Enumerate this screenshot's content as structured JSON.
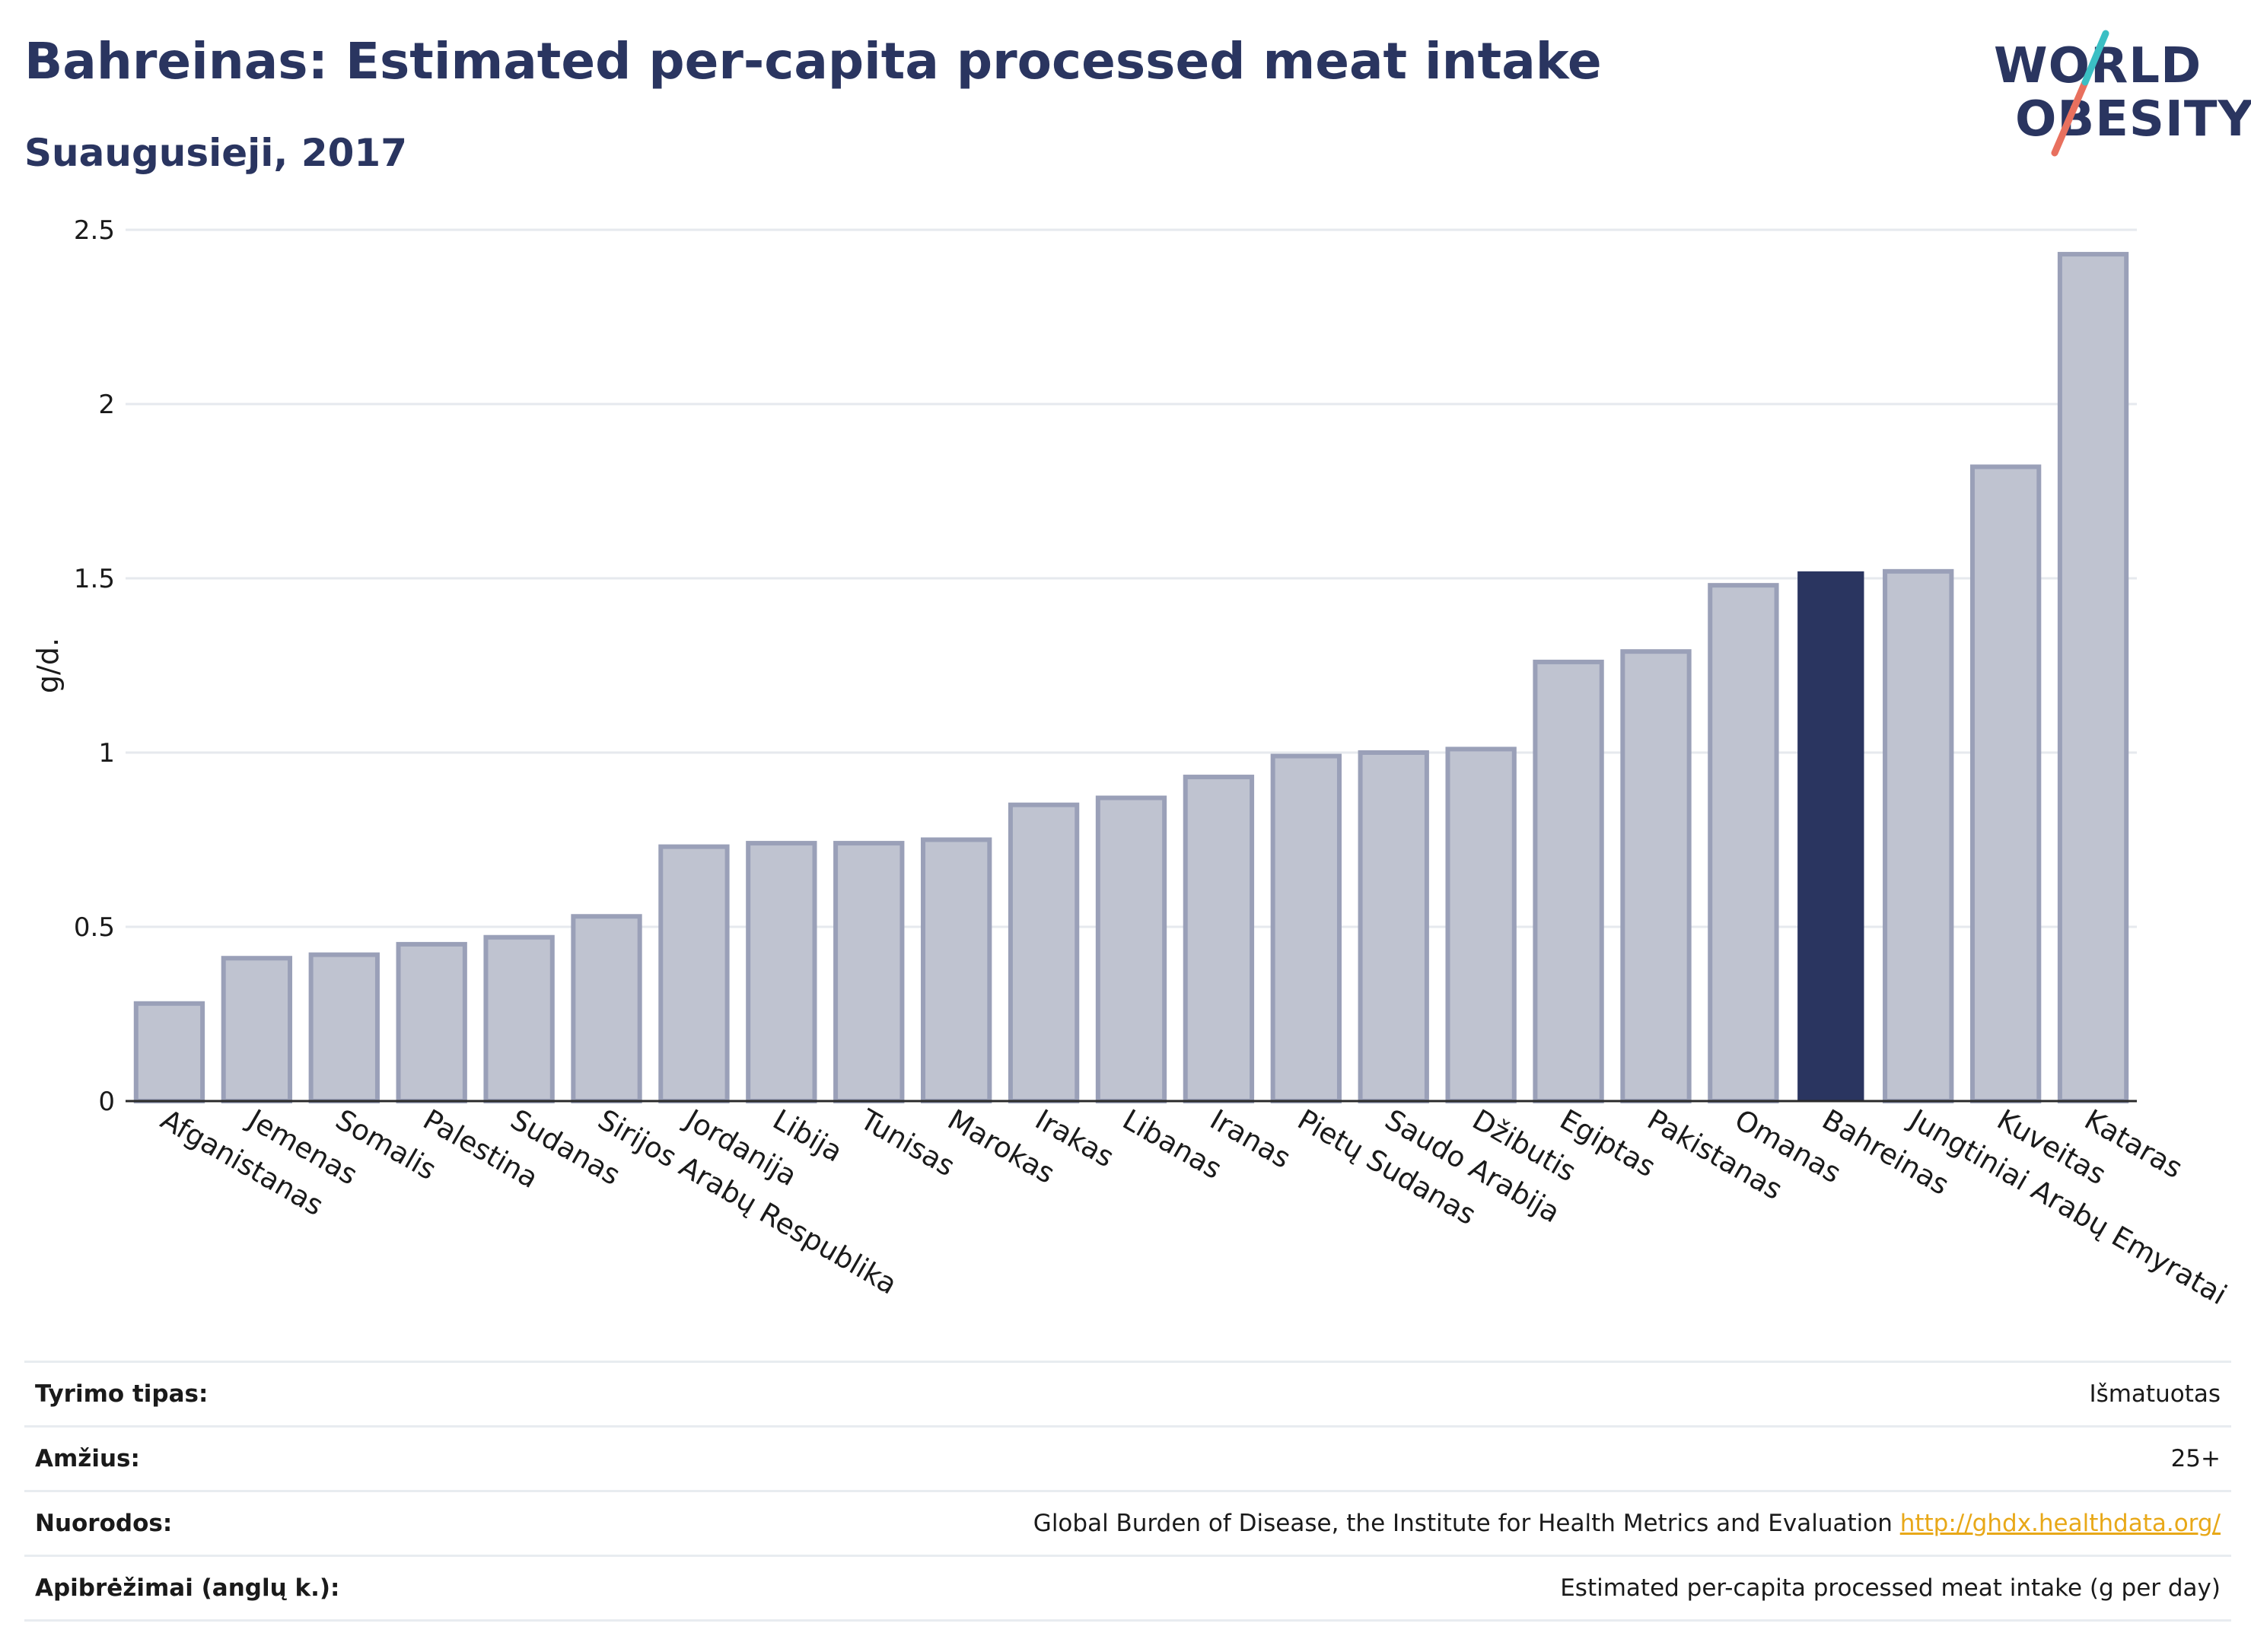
{
  "header": {
    "title": "Bahreinas: Estimated per-capita processed meat intake",
    "subtitle": "Suaugusieji, 2017"
  },
  "logo": {
    "line1": "WORLD",
    "line2": "OBESITY",
    "accent_teal": "#3bbfc4",
    "accent_coral": "#e8705e"
  },
  "colors": {
    "bar_default_fill": "#bfc3d0",
    "bar_default_stroke": "#9aa0b8",
    "bar_highlight": "#2a3560",
    "grid": "#e6e9ee",
    "axis": "#2a2a2a",
    "text": "#2a3560"
  },
  "chart_data": {
    "type": "bar",
    "title": "Bahreinas: Estimated per-capita processed meat intake",
    "subtitle": "Suaugusieji, 2017",
    "xlabel": "",
    "ylabel": "g/d.",
    "ylim": [
      0,
      2.5
    ],
    "yticks": [
      "0",
      "0.5",
      "1",
      "1.5",
      "2",
      "2.5"
    ],
    "grid": true,
    "highlight": "Bahreinas",
    "categories": [
      "Afganistanas",
      "Jemenas",
      "Somalis",
      "Palestina",
      "Sudanas",
      "Sirijos Arabų Respublika",
      "Jordanija",
      "Libija",
      "Tunisas",
      "Marokas",
      "Irakas",
      "Libanas",
      "Iranas",
      "Pietų Sudanas",
      "Saudo Arabija",
      "Džibutis",
      "Egiptas",
      "Pakistanas",
      "Omanas",
      "Bahreinas",
      "Jungtiniai Arabų Emyratai",
      "Kuveitas",
      "Kataras"
    ],
    "values": [
      0.28,
      0.41,
      0.42,
      0.45,
      0.47,
      0.53,
      0.73,
      0.74,
      0.74,
      0.75,
      0.85,
      0.87,
      0.93,
      0.99,
      1.0,
      1.01,
      1.26,
      1.29,
      1.48,
      1.52,
      1.52,
      1.82,
      2.43
    ]
  },
  "info": [
    {
      "label": "Tyrimo tipas:",
      "value": "Išmatuotas"
    },
    {
      "label": "Amžius:",
      "value": "25+"
    },
    {
      "label": "Nuorodos:",
      "value": "Global Burden of Disease, the Institute for Health Metrics and Evaluation",
      "link": "http://ghdx.healthdata.org/"
    },
    {
      "label": "Apibrėžimai (anglų k.):",
      "value": "Estimated per-capita processed meat intake (g per day)"
    }
  ]
}
